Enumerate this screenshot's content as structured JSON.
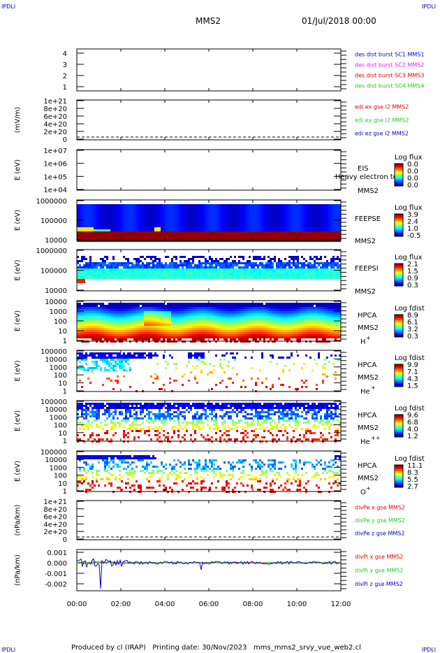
{
  "corner_labels": {
    "top_left": "IPDLI",
    "top_right": "IPDLI",
    "bottom_left": "IPDLI",
    "bottom_right": "IPDLI"
  },
  "header": {
    "spacecraft": "MMS2",
    "date": "01/Jul/2018 00:00"
  },
  "footer": "Produced by cl (IRAP)   Printing date: 30/Nov/2023   mms_mms2_srvy_vue_web2.cl",
  "time_ticks": [
    "00:00",
    "02:00",
    "04:00",
    "06:00",
    "08:00",
    "10:00",
    "12:00"
  ],
  "colors": {
    "red": "#dd0000",
    "green": "#22cc22",
    "blue": "#0000cc",
    "magenta": "#dd22dd",
    "background": "#ffffff"
  },
  "panels": [
    {
      "id": "burst",
      "type": "line",
      "ylabel": "",
      "ticks": [
        "4",
        "3",
        "2",
        "1"
      ],
      "side_labels": [
        {
          "text": "des dist burst SC1 MMS1",
          "color": "#0000cc"
        },
        {
          "text": "des dist burst SC2 MMS2",
          "color": "#dd22dd"
        },
        {
          "text": "des dist burst SC3 MMS3",
          "color": "#dd0000"
        },
        {
          "text": "des dist burst SC4 MMS4",
          "color": "#22cc22"
        }
      ]
    },
    {
      "id": "edi",
      "type": "line",
      "ylabel": "(mV/m)",
      "ticks": [
        "1e+21",
        "8e+20",
        "6e+20",
        "4e+20",
        "2e+20",
        "0"
      ],
      "dashed_zero": true,
      "side_labels": [
        {
          "text": "edi ex gse l2 MMS2",
          "color": "#dd0000"
        },
        {
          "text": "edi ey gse l2 MMS2",
          "color": "#22cc22"
        },
        {
          "text": "edi ez gse l2 MMS2",
          "color": "#0000cc"
        }
      ]
    },
    {
      "id": "eis",
      "type": "spectrogram",
      "ylabel": "E (eV)",
      "ticks": [
        "1e+07",
        "1e+06",
        "1e+05",
        "1e+04"
      ],
      "instrument": [
        "EIS",
        "MMS2"
      ],
      "overlay_text": "Heavy electron to",
      "colorbar_title": "Log flux",
      "colorbar_values": [
        "0.0",
        "0.0",
        "0.0",
        "0.0"
      ]
    },
    {
      "id": "feepse",
      "type": "spectrogram",
      "ylabel": "E (eV)",
      "ticks": [
        "1000000",
        "100000",
        "10000"
      ],
      "instrument": [
        "FEEPSE",
        "MMS2"
      ],
      "colorbar_title": "Log flux",
      "colorbar_values": [
        "3.9",
        "2.4",
        "1.0",
        "-0.5"
      ]
    },
    {
      "id": "feepsi",
      "type": "spectrogram",
      "ylabel": "E (eV)",
      "ticks": [
        "1000000",
        "100000",
        "10000"
      ],
      "instrument": [
        "FEEPSI",
        "MMS2"
      ],
      "colorbar_title": "Log flux",
      "colorbar_values": [
        "2.1",
        "1.5",
        "0.9",
        "0.3"
      ]
    },
    {
      "id": "hpca_h",
      "type": "spectrogram",
      "ylabel": "E (eV)",
      "ticks": [
        "10000",
        "1000",
        "100",
        "10",
        "1"
      ],
      "instrument": [
        "HPCA",
        "MMS2"
      ],
      "species": "H",
      "charge": "+",
      "colorbar_title": "Log fdist",
      "colorbar_values": [
        "8.9",
        "6.1",
        "3.2",
        "0.3"
      ]
    },
    {
      "id": "hpca_he1",
      "type": "spectrogram",
      "ylabel": "E (eV)",
      "ticks": [
        "100000",
        "10000",
        "1000",
        "100",
        "10",
        "1"
      ],
      "instrument": [
        "HPCA",
        "MMS2"
      ],
      "species": "He",
      "charge": "+",
      "colorbar_title": "Log fdist",
      "colorbar_values": [
        "9.9",
        "7.1",
        "4.3",
        "1.5"
      ]
    },
    {
      "id": "hpca_he2",
      "type": "spectrogram",
      "ylabel": "E (eV)",
      "ticks": [
        "100000",
        "10000",
        "1000",
        "100",
        "10",
        "1"
      ],
      "instrument": [
        "HPCA",
        "MMS2"
      ],
      "species": "He",
      "charge": "++",
      "colorbar_title": "Log fdist",
      "colorbar_values": [
        "9.6",
        "6.8",
        "4.0",
        "1.2"
      ]
    },
    {
      "id": "hpca_o",
      "type": "spectrogram",
      "ylabel": "E (eV)",
      "ticks": [
        "100000",
        "10000",
        "1000",
        "100",
        "10",
        "1"
      ],
      "instrument": [
        "HPCA",
        "MMS2"
      ],
      "species": "O",
      "charge": "+",
      "colorbar_title": "Log fdist",
      "colorbar_values": [
        "11.1",
        "8.3",
        "5.5",
        "2.7"
      ]
    },
    {
      "id": "divpe",
      "type": "line",
      "ylabel": "(nPa/km)",
      "ticks": [
        "1e+21",
        "8e+20",
        "6e+20",
        "4e+20",
        "2e+20",
        "0"
      ],
      "dashed_zero": true,
      "side_labels": [
        {
          "text": "divPe x gse MMS2",
          "color": "#dd0000"
        },
        {
          "text": "divPe y gse MMS2",
          "color": "#22cc22"
        },
        {
          "text": "divPe z gse MMS2",
          "color": "#0000cc"
        }
      ]
    },
    {
      "id": "divpi",
      "type": "line",
      "ylabel": "(nPa/km)",
      "ticks": [
        "0.001",
        "0.000",
        "-0.001",
        "-0.002"
      ],
      "side_labels": [
        {
          "text": "divPi x gse MMS2",
          "color": "#dd0000"
        },
        {
          "text": "divPi y gse MMS2",
          "color": "#22cc22"
        },
        {
          "text": "divPi z gse MMS2",
          "color": "#0000cc"
        }
      ]
    }
  ],
  "chart_data": [
    {
      "type": "line",
      "title": "des dist burst",
      "ylim": [
        0.5,
        4.5
      ],
      "series": [
        {
          "name": "des dist burst SC1 MMS1",
          "values": []
        },
        {
          "name": "des dist burst SC2 MMS2",
          "values": []
        },
        {
          "name": "des dist burst SC3 MMS3",
          "values": []
        },
        {
          "name": "des dist burst SC4 MMS4",
          "values": []
        }
      ]
    },
    {
      "type": "line",
      "ylabel": "(mV/m)",
      "ylim": [
        0,
        1e+21
      ],
      "series": [
        {
          "name": "edi ex gse l2 MMS2",
          "values": []
        },
        {
          "name": "edi ey gse l2 MMS2",
          "values": []
        },
        {
          "name": "edi ez gse l2 MMS2",
          "values": []
        }
      ]
    },
    {
      "type": "heatmap",
      "ylabel": "E (eV)",
      "name": "EIS",
      "ylim": [
        10000.0,
        10000000.0
      ],
      "log_y": true,
      "zlim": [
        0.0,
        0.0
      ],
      "data": "empty"
    },
    {
      "type": "heatmap",
      "ylabel": "E (eV)",
      "name": "FEEPSE",
      "ylim": [
        10000.0,
        1000000.0
      ],
      "log_y": true,
      "zlim": [
        -0.5,
        3.9
      ]
    },
    {
      "type": "heatmap",
      "ylabel": "E (eV)",
      "name": "FEEPSI",
      "ylim": [
        10000.0,
        1000000.0
      ],
      "log_y": true,
      "zlim": [
        0.3,
        2.1
      ]
    },
    {
      "type": "heatmap",
      "ylabel": "E (eV)",
      "name": "HPCA H+",
      "ylim": [
        1,
        10000.0
      ],
      "log_y": true,
      "zlim": [
        0.3,
        8.9
      ]
    },
    {
      "type": "heatmap",
      "ylabel": "E (eV)",
      "name": "HPCA He+",
      "ylim": [
        1,
        100000.0
      ],
      "log_y": true,
      "zlim": [
        1.5,
        9.9
      ]
    },
    {
      "type": "heatmap",
      "ylabel": "E (eV)",
      "name": "HPCA He++",
      "ylim": [
        1,
        100000.0
      ],
      "log_y": true,
      "zlim": [
        1.2,
        9.6
      ]
    },
    {
      "type": "heatmap",
      "ylabel": "E (eV)",
      "name": "HPCA O+",
      "ylim": [
        1,
        100000.0
      ],
      "log_y": true,
      "zlim": [
        2.7,
        11.1
      ]
    },
    {
      "type": "line",
      "ylabel": "(nPa/km)",
      "ylim": [
        0,
        1e+21
      ],
      "series": [
        {
          "name": "divPe x gse MMS2",
          "values": []
        },
        {
          "name": "divPe y gse MMS2",
          "values": []
        },
        {
          "name": "divPe z gse MMS2",
          "values": []
        }
      ]
    },
    {
      "type": "line",
      "ylabel": "(nPa/km)",
      "ylim": [
        -0.0025,
        0.0012
      ],
      "xlim": [
        "00:00",
        "12:00"
      ],
      "series": [
        {
          "name": "divPi x gse MMS2",
          "x": [
            "00:00",
            "12:00"
          ],
          "values": [
            0.0,
            0.0
          ]
        },
        {
          "name": "divPi y gse MMS2",
          "x": [
            "00:00",
            "12:00"
          ],
          "values": [
            0.0,
            0.0
          ]
        },
        {
          "name": "divPi z gse MMS2",
          "x": [
            "00:00",
            "01:00",
            "01:02",
            "12:00"
          ],
          "values": [
            0.0,
            -0.0024,
            0.0,
            0.0
          ]
        }
      ]
    }
  ]
}
